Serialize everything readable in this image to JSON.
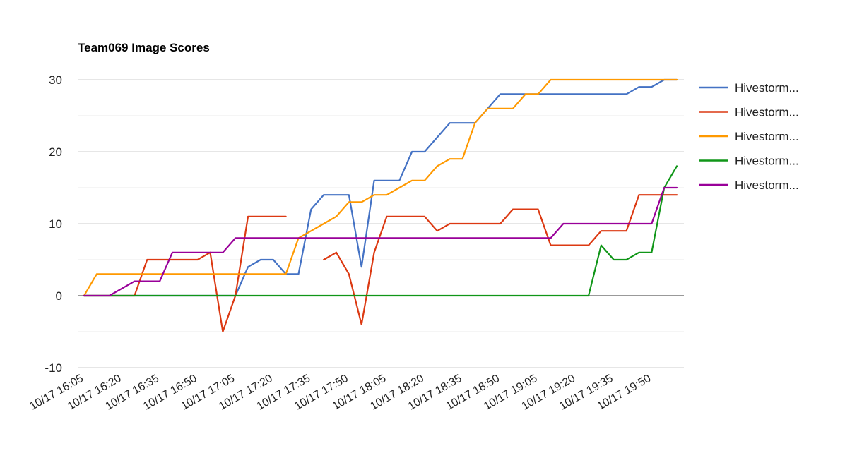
{
  "chart_data": {
    "type": "line",
    "title": "Team069 Image Scores",
    "xlabel": "",
    "ylabel": "",
    "ylim": [
      -10,
      30
    ],
    "yticks": [
      -10,
      0,
      10,
      20,
      30
    ],
    "grid": true,
    "legend_position": "right",
    "x_tick_labels": [
      "10/17 16:05",
      "10/17 16:20",
      "10/17 16:35",
      "10/17 16:50",
      "10/17 17:05",
      "10/17 17:20",
      "10/17 17:35",
      "10/17 17:50",
      "10/17 18:05",
      "10/17 18:20",
      "10/17 18:35",
      "10/17 18:50",
      "10/17 19:05",
      "10/17 19:20",
      "10/17 19:35",
      "10/17 19:50"
    ],
    "x": [
      "16:05",
      "16:10",
      "16:15",
      "16:20",
      "16:25",
      "16:30",
      "16:35",
      "16:40",
      "16:45",
      "16:50",
      "16:55",
      "17:00",
      "17:05",
      "17:10",
      "17:15",
      "17:20",
      "17:25",
      "17:30",
      "17:35",
      "17:40",
      "17:45",
      "17:50",
      "17:55",
      "18:00",
      "18:05",
      "18:10",
      "18:15",
      "18:20",
      "18:25",
      "18:30",
      "18:35",
      "18:40",
      "18:45",
      "18:50",
      "18:55",
      "19:00",
      "19:05",
      "19:10",
      "19:15",
      "19:20",
      "19:25",
      "19:30",
      "19:35",
      "19:40",
      "19:45",
      "19:50",
      "19:55",
      "20:00"
    ],
    "series": [
      {
        "name": "Hivestorm...",
        "color": "#4472c4",
        "values": [
          0,
          0,
          0,
          0,
          0,
          0,
          0,
          0,
          0,
          0,
          0,
          0,
          0,
          4,
          5,
          5,
          3,
          3,
          12,
          14,
          14,
          14,
          4,
          16,
          16,
          16,
          20,
          20,
          22,
          24,
          24,
          24,
          26,
          28,
          28,
          28,
          28,
          28,
          28,
          28,
          28,
          28,
          28,
          28,
          29,
          29,
          30,
          30
        ]
      },
      {
        "name": "Hivestorm...",
        "color": "#dc3912",
        "values": [
          0,
          0,
          0,
          0,
          0,
          5,
          5,
          5,
          5,
          5,
          6,
          -5,
          0,
          11,
          11,
          11,
          11,
          null,
          null,
          5,
          6,
          3,
          -4,
          6,
          11,
          11,
          11,
          11,
          9,
          10,
          10,
          10,
          10,
          10,
          12,
          12,
          12,
          7,
          7,
          7,
          7,
          9,
          9,
          9,
          14,
          14,
          14,
          14
        ]
      },
      {
        "name": "Hivestorm...",
        "color": "#ff9900",
        "values": [
          0,
          3,
          3,
          3,
          3,
          3,
          3,
          3,
          3,
          3,
          3,
          3,
          3,
          3,
          3,
          3,
          3,
          8,
          9,
          10,
          11,
          13,
          13,
          14,
          14,
          15,
          16,
          16,
          18,
          19,
          19,
          24,
          26,
          26,
          26,
          28,
          28,
          30,
          30,
          30,
          30,
          30,
          30,
          30,
          30,
          30,
          30,
          30
        ]
      },
      {
        "name": "Hivestorm...",
        "color": "#109618",
        "values": [
          0,
          0,
          0,
          0,
          0,
          0,
          0,
          0,
          0,
          0,
          0,
          0,
          0,
          0,
          0,
          0,
          0,
          0,
          0,
          0,
          0,
          0,
          0,
          0,
          0,
          0,
          0,
          0,
          0,
          0,
          0,
          0,
          0,
          0,
          0,
          0,
          0,
          0,
          0,
          0,
          0,
          7,
          5,
          5,
          6,
          6,
          15,
          18
        ]
      },
      {
        "name": "Hivestorm...",
        "color": "#990099",
        "values": [
          0,
          0,
          0,
          1,
          2,
          2,
          2,
          6,
          6,
          6,
          6,
          6,
          8,
          8,
          8,
          8,
          8,
          8,
          8,
          8,
          8,
          8,
          8,
          8,
          8,
          8,
          8,
          8,
          8,
          8,
          8,
          8,
          8,
          8,
          8,
          8,
          8,
          8,
          10,
          10,
          10,
          10,
          10,
          10,
          10,
          10,
          15,
          15
        ]
      }
    ]
  }
}
